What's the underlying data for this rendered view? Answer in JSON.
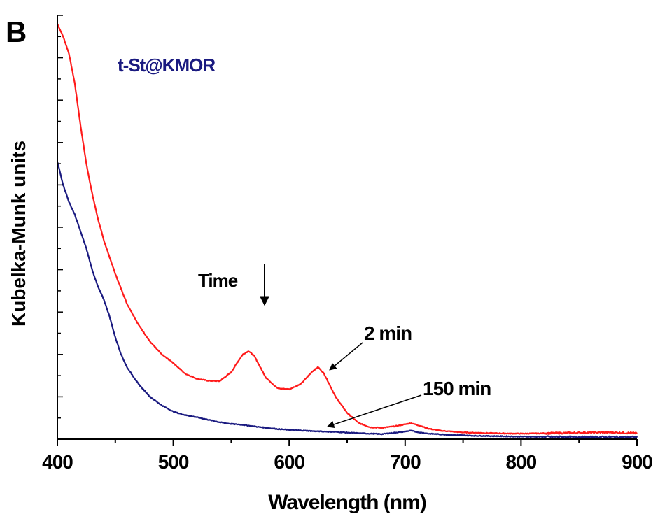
{
  "chart_data": {
    "type": "line",
    "panel_label": "B",
    "title": "t-St@KMOR",
    "xlabel": "Wavelength (nm)",
    "ylabel": "Kubelka-Munk units",
    "xlim": [
      400,
      900
    ],
    "ylim": [
      0,
      1
    ],
    "x_ticks": [
      400,
      500,
      600,
      700,
      800,
      900
    ],
    "y_tick_labels": "none",
    "grid": false,
    "colors": {
      "red_series": "#ff1a1a",
      "navy_series": "#1a1a80",
      "title": "#1a1a80",
      "axis": "#000000"
    },
    "series": [
      {
        "name": "2 min",
        "color": "#ff1a1a",
        "x": [
          400,
          405,
          410,
          415,
          420,
          425,
          430,
          435,
          440,
          445,
          450,
          460,
          470,
          480,
          490,
          500,
          510,
          520,
          530,
          540,
          550,
          555,
          560,
          565,
          570,
          575,
          580,
          590,
          600,
          610,
          620,
          625,
          630,
          635,
          640,
          650,
          660,
          670,
          680,
          690,
          700,
          705,
          710,
          720,
          730,
          740,
          750,
          775,
          800,
          825,
          850,
          875,
          900
        ],
        "y": [
          0.98,
          0.95,
          0.91,
          0.84,
          0.74,
          0.65,
          0.58,
          0.52,
          0.47,
          0.43,
          0.39,
          0.32,
          0.27,
          0.23,
          0.2,
          0.18,
          0.155,
          0.143,
          0.138,
          0.137,
          0.158,
          0.18,
          0.2,
          0.208,
          0.196,
          0.17,
          0.145,
          0.12,
          0.118,
          0.13,
          0.16,
          0.17,
          0.155,
          0.128,
          0.1,
          0.062,
          0.038,
          0.028,
          0.027,
          0.03,
          0.035,
          0.038,
          0.034,
          0.025,
          0.02,
          0.018,
          0.016,
          0.014,
          0.013,
          0.014,
          0.015,
          0.016,
          0.014
        ]
      },
      {
        "name": "150 min",
        "color": "#1a1a80",
        "x": [
          400,
          405,
          410,
          415,
          420,
          425,
          430,
          435,
          440,
          445,
          450,
          455,
          460,
          470,
          480,
          490,
          500,
          510,
          520,
          530,
          540,
          550,
          560,
          570,
          580,
          590,
          600,
          620,
          640,
          660,
          680,
          700,
          705,
          710,
          720,
          740,
          760,
          800,
          850,
          900
        ],
        "y": [
          0.655,
          0.6,
          0.56,
          0.53,
          0.49,
          0.45,
          0.4,
          0.36,
          0.33,
          0.29,
          0.24,
          0.2,
          0.17,
          0.13,
          0.1,
          0.08,
          0.065,
          0.057,
          0.052,
          0.046,
          0.04,
          0.036,
          0.034,
          0.03,
          0.027,
          0.024,
          0.022,
          0.019,
          0.017,
          0.014,
          0.012,
          0.018,
          0.02,
          0.017,
          0.013,
          0.01,
          0.008,
          0.006,
          0.005,
          0.005
        ]
      }
    ],
    "annotations": [
      {
        "text": "Time",
        "arrow": "down",
        "x": 578
      },
      {
        "text": "2 min",
        "points_to_x": 628
      },
      {
        "text": "150 min",
        "points_to_x": 640
      }
    ]
  }
}
